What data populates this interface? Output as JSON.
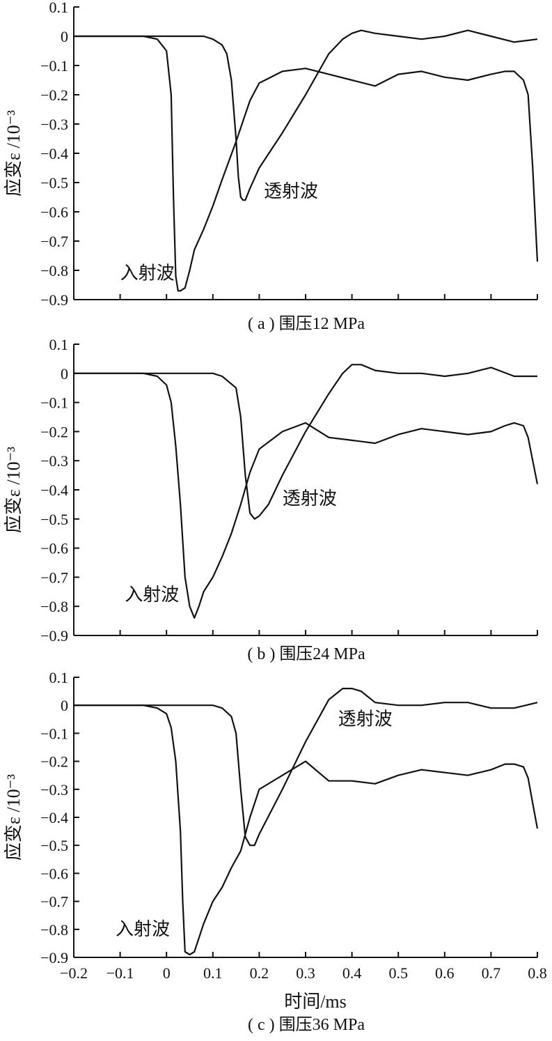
{
  "x_axis": {
    "label": "时间/ms",
    "min": -0.2,
    "max": 0.8,
    "ticks": [
      -0.2,
      -0.1,
      0,
      0.1,
      0.2,
      0.3,
      0.4,
      0.5,
      0.6,
      0.7,
      0.8
    ]
  },
  "y_axis": {
    "label": "应变ε /10⁻³",
    "min": -0.9,
    "max": 0.1,
    "ticks": [
      0.1,
      0,
      -0.1,
      -0.2,
      -0.3,
      -0.4,
      -0.5,
      -0.6,
      -0.7,
      -0.8,
      -0.9
    ]
  },
  "chart_data": [
    {
      "type": "line",
      "caption": "( a ) 围压12 MPa",
      "xlim": [
        -0.2,
        0.8
      ],
      "ylim": [
        -0.9,
        0.1
      ],
      "annotations": [
        {
          "text": "入射波",
          "x": -0.1,
          "y": -0.83
        },
        {
          "text": "透射波",
          "x": 0.21,
          "y": -0.55
        }
      ],
      "series": [
        {
          "x": [
            -0.2,
            -0.1,
            -0.05,
            -0.02,
            0.0,
            0.01,
            0.015,
            0.02,
            0.025,
            0.03,
            0.04,
            0.05,
            0.06,
            0.08,
            0.1,
            0.12,
            0.15,
            0.18,
            0.2,
            0.25,
            0.3,
            0.35,
            0.4,
            0.45,
            0.5,
            0.55,
            0.6,
            0.65,
            0.7,
            0.73,
            0.75,
            0.77,
            0.78,
            0.79,
            0.8
          ],
          "y": [
            0.0,
            0.0,
            0.0,
            -0.01,
            -0.05,
            -0.2,
            -0.55,
            -0.82,
            -0.87,
            -0.87,
            -0.86,
            -0.8,
            -0.73,
            -0.66,
            -0.58,
            -0.49,
            -0.36,
            -0.22,
            -0.16,
            -0.12,
            -0.11,
            -0.13,
            -0.15,
            -0.17,
            -0.13,
            -0.12,
            -0.14,
            -0.15,
            -0.13,
            -0.12,
            -0.12,
            -0.15,
            -0.2,
            -0.45,
            -0.77
          ]
        },
        {
          "x": [
            -0.2,
            -0.1,
            0.0,
            0.05,
            0.08,
            0.1,
            0.12,
            0.13,
            0.14,
            0.15,
            0.155,
            0.16,
            0.165,
            0.17,
            0.18,
            0.2,
            0.25,
            0.3,
            0.35,
            0.38,
            0.4,
            0.42,
            0.45,
            0.5,
            0.55,
            0.6,
            0.65,
            0.7,
            0.75,
            0.8
          ],
          "y": [
            0.0,
            0.0,
            0.0,
            0.0,
            0.0,
            -0.01,
            -0.03,
            -0.06,
            -0.15,
            -0.35,
            -0.48,
            -0.55,
            -0.56,
            -0.56,
            -0.52,
            -0.45,
            -0.33,
            -0.2,
            -0.06,
            -0.01,
            0.01,
            0.02,
            0.01,
            0.0,
            -0.01,
            0.0,
            0.02,
            0.0,
            -0.02,
            -0.01
          ]
        }
      ]
    },
    {
      "type": "line",
      "caption": "( b ) 围压24 MPa",
      "xlim": [
        -0.2,
        0.8
      ],
      "ylim": [
        -0.9,
        0.1
      ],
      "annotations": [
        {
          "text": "入射波",
          "x": -0.09,
          "y": -0.78
        },
        {
          "text": "透射波",
          "x": 0.25,
          "y": -0.45
        }
      ],
      "series": [
        {
          "x": [
            -0.2,
            -0.1,
            -0.05,
            -0.02,
            0.0,
            0.01,
            0.02,
            0.03,
            0.04,
            0.05,
            0.06,
            0.07,
            0.08,
            0.1,
            0.12,
            0.14,
            0.16,
            0.18,
            0.2,
            0.25,
            0.3,
            0.35,
            0.4,
            0.45,
            0.5,
            0.55,
            0.6,
            0.65,
            0.7,
            0.73,
            0.75,
            0.77,
            0.78,
            0.79,
            0.8
          ],
          "y": [
            0.0,
            0.0,
            0.0,
            -0.01,
            -0.04,
            -0.1,
            -0.25,
            -0.45,
            -0.7,
            -0.8,
            -0.84,
            -0.8,
            -0.75,
            -0.7,
            -0.63,
            -0.55,
            -0.45,
            -0.34,
            -0.26,
            -0.2,
            -0.17,
            -0.22,
            -0.23,
            -0.24,
            -0.21,
            -0.19,
            -0.2,
            -0.21,
            -0.2,
            -0.18,
            -0.17,
            -0.18,
            -0.22,
            -0.3,
            -0.38
          ]
        },
        {
          "x": [
            -0.2,
            -0.1,
            0.0,
            0.05,
            0.1,
            0.12,
            0.15,
            0.16,
            0.17,
            0.18,
            0.19,
            0.2,
            0.22,
            0.25,
            0.3,
            0.35,
            0.38,
            0.4,
            0.42,
            0.45,
            0.5,
            0.55,
            0.6,
            0.65,
            0.7,
            0.75,
            0.8
          ],
          "y": [
            0.0,
            0.0,
            0.0,
            0.0,
            0.0,
            -0.01,
            -0.05,
            -0.15,
            -0.35,
            -0.48,
            -0.5,
            -0.49,
            -0.45,
            -0.35,
            -0.2,
            -0.07,
            0.0,
            0.03,
            0.03,
            0.01,
            0.0,
            0.0,
            -0.01,
            0.0,
            0.02,
            -0.01,
            -0.01
          ]
        }
      ]
    },
    {
      "type": "line",
      "caption": "( c ) 围压36 MPa",
      "xlim": [
        -0.2,
        0.8
      ],
      "ylim": [
        -0.9,
        0.1
      ],
      "annotations": [
        {
          "text": "入射波",
          "x": -0.11,
          "y": -0.82
        },
        {
          "text": "透射波",
          "x": 0.37,
          "y": -0.07
        }
      ],
      "series": [
        {
          "x": [
            -0.2,
            -0.1,
            -0.05,
            -0.02,
            0.0,
            0.01,
            0.02,
            0.03,
            0.035,
            0.04,
            0.05,
            0.06,
            0.08,
            0.1,
            0.12,
            0.14,
            0.16,
            0.18,
            0.2,
            0.25,
            0.3,
            0.35,
            0.4,
            0.45,
            0.5,
            0.55,
            0.6,
            0.65,
            0.7,
            0.73,
            0.75,
            0.77,
            0.78,
            0.79,
            0.8
          ],
          "y": [
            0.0,
            0.0,
            0.0,
            -0.01,
            -0.03,
            -0.08,
            -0.2,
            -0.45,
            -0.7,
            -0.88,
            -0.89,
            -0.88,
            -0.78,
            -0.7,
            -0.65,
            -0.58,
            -0.52,
            -0.4,
            -0.3,
            -0.25,
            -0.2,
            -0.27,
            -0.27,
            -0.28,
            -0.25,
            -0.23,
            -0.24,
            -0.25,
            -0.23,
            -0.21,
            -0.21,
            -0.22,
            -0.26,
            -0.35,
            -0.44
          ]
        },
        {
          "x": [
            -0.2,
            -0.1,
            0.0,
            0.05,
            0.1,
            0.12,
            0.14,
            0.15,
            0.16,
            0.17,
            0.18,
            0.19,
            0.2,
            0.25,
            0.3,
            0.35,
            0.38,
            0.4,
            0.42,
            0.45,
            0.5,
            0.55,
            0.6,
            0.65,
            0.7,
            0.75,
            0.8
          ],
          "y": [
            0.0,
            0.0,
            0.0,
            0.0,
            0.0,
            -0.01,
            -0.04,
            -0.1,
            -0.3,
            -0.47,
            -0.5,
            -0.5,
            -0.46,
            -0.3,
            -0.13,
            0.02,
            0.06,
            0.06,
            0.05,
            0.01,
            0.0,
            0.0,
            0.01,
            0.01,
            -0.01,
            -0.01,
            0.01
          ]
        }
      ]
    }
  ]
}
